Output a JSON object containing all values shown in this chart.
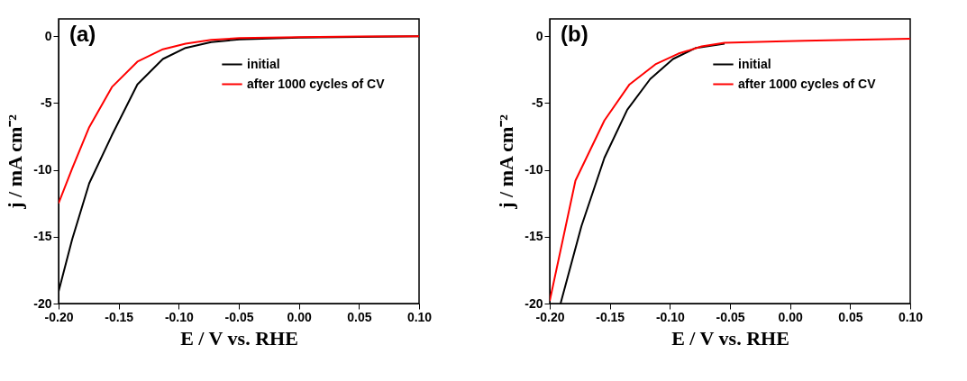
{
  "chart_data": [
    {
      "type": "line",
      "title": "(a)",
      "xlabel": "E / V vs. RHE",
      "ylabel": "j / mA cm⁻²",
      "xlim": [
        -0.2,
        0.1
      ],
      "ylim": [
        -20,
        1.3
      ],
      "xticks": [
        {
          "value": -0.2,
          "label": "-0.20"
        },
        {
          "value": -0.15,
          "label": "-0.15"
        },
        {
          "value": -0.1,
          "label": "-0.10"
        },
        {
          "value": -0.05,
          "label": "-0.05"
        },
        {
          "value": 0,
          "label": "0.00"
        },
        {
          "value": 0.05,
          "label": "0.05"
        },
        {
          "value": 0.1,
          "label": "0.10"
        }
      ],
      "yticks": [
        -20,
        -15,
        -10,
        -5,
        0
      ],
      "legend": "top right",
      "grid": false,
      "line_style": "solid",
      "marker": "none",
      "series": [
        {
          "name": "initial",
          "color": "#000000",
          "x": [
            -0.2,
            -0.1887,
            -0.1745,
            -0.1556,
            -0.1344,
            -0.1132,
            -0.0943,
            -0.073,
            -0.0495,
            0.0,
            0.05,
            0.1
          ],
          "values": [
            -19.1,
            -15.2,
            -11.0,
            -7.4,
            -3.6,
            -1.7,
            -0.87,
            -0.44,
            -0.23,
            -0.1,
            -0.05,
            0.0
          ]
        },
        {
          "name": "after 1000 cycles of CV",
          "color": "#ff0000",
          "x": [
            -0.2,
            -0.1887,
            -0.1745,
            -0.1556,
            -0.1344,
            -0.1132,
            -0.0943,
            -0.073,
            -0.0495,
            0.0,
            0.05,
            0.1
          ],
          "values": [
            -12.5,
            -9.9,
            -6.8,
            -3.8,
            -1.9,
            -0.97,
            -0.55,
            -0.27,
            -0.14,
            -0.06,
            -0.02,
            0.0
          ]
        }
      ]
    },
    {
      "type": "line",
      "title": "(b)",
      "xlabel": "E / V vs. RHE",
      "ylabel": "j / mA cm⁻²",
      "xlim": [
        -0.2,
        0.1
      ],
      "ylim": [
        -20,
        1.3
      ],
      "xticks": [
        {
          "value": -0.2,
          "label": "-0.20"
        },
        {
          "value": -0.15,
          "label": "-0.15"
        },
        {
          "value": -0.1,
          "label": "-0.10"
        },
        {
          "value": -0.05,
          "label": "-0.05"
        },
        {
          "value": 0,
          "label": "0.00"
        },
        {
          "value": 0.05,
          "label": "0.05"
        },
        {
          "value": 0.1,
          "label": "0.10"
        }
      ],
      "yticks": [
        -20,
        -15,
        -10,
        -5,
        0
      ],
      "legend": "top right",
      "grid": false,
      "line_style": "solid",
      "marker": "none",
      "series": [
        {
          "name": "initial",
          "color": "#000000",
          "x": [
            -0.191,
            -0.1736,
            -0.1545,
            -0.1355,
            -0.1164,
            -0.0974,
            -0.0783,
            -0.0545
          ],
          "values": [
            -20,
            -14.2,
            -9.1,
            -5.5,
            -3.2,
            -1.7,
            -0.87,
            -0.55
          ]
        },
        {
          "name": "after 1000 cycles of CV",
          "color": "#ff0000",
          "x": [
            -0.2,
            -0.1786,
            -0.1545,
            -0.1336,
            -0.1121,
            -0.093,
            -0.0736,
            -0.0545,
            -0.0117,
            0.0121,
            0.05,
            0.1
          ],
          "values": [
            -19.8,
            -10.8,
            -6.3,
            -3.6,
            -2.1,
            -1.3,
            -0.76,
            -0.49,
            -0.38,
            -0.33,
            -0.26,
            -0.19
          ]
        }
      ]
    }
  ]
}
